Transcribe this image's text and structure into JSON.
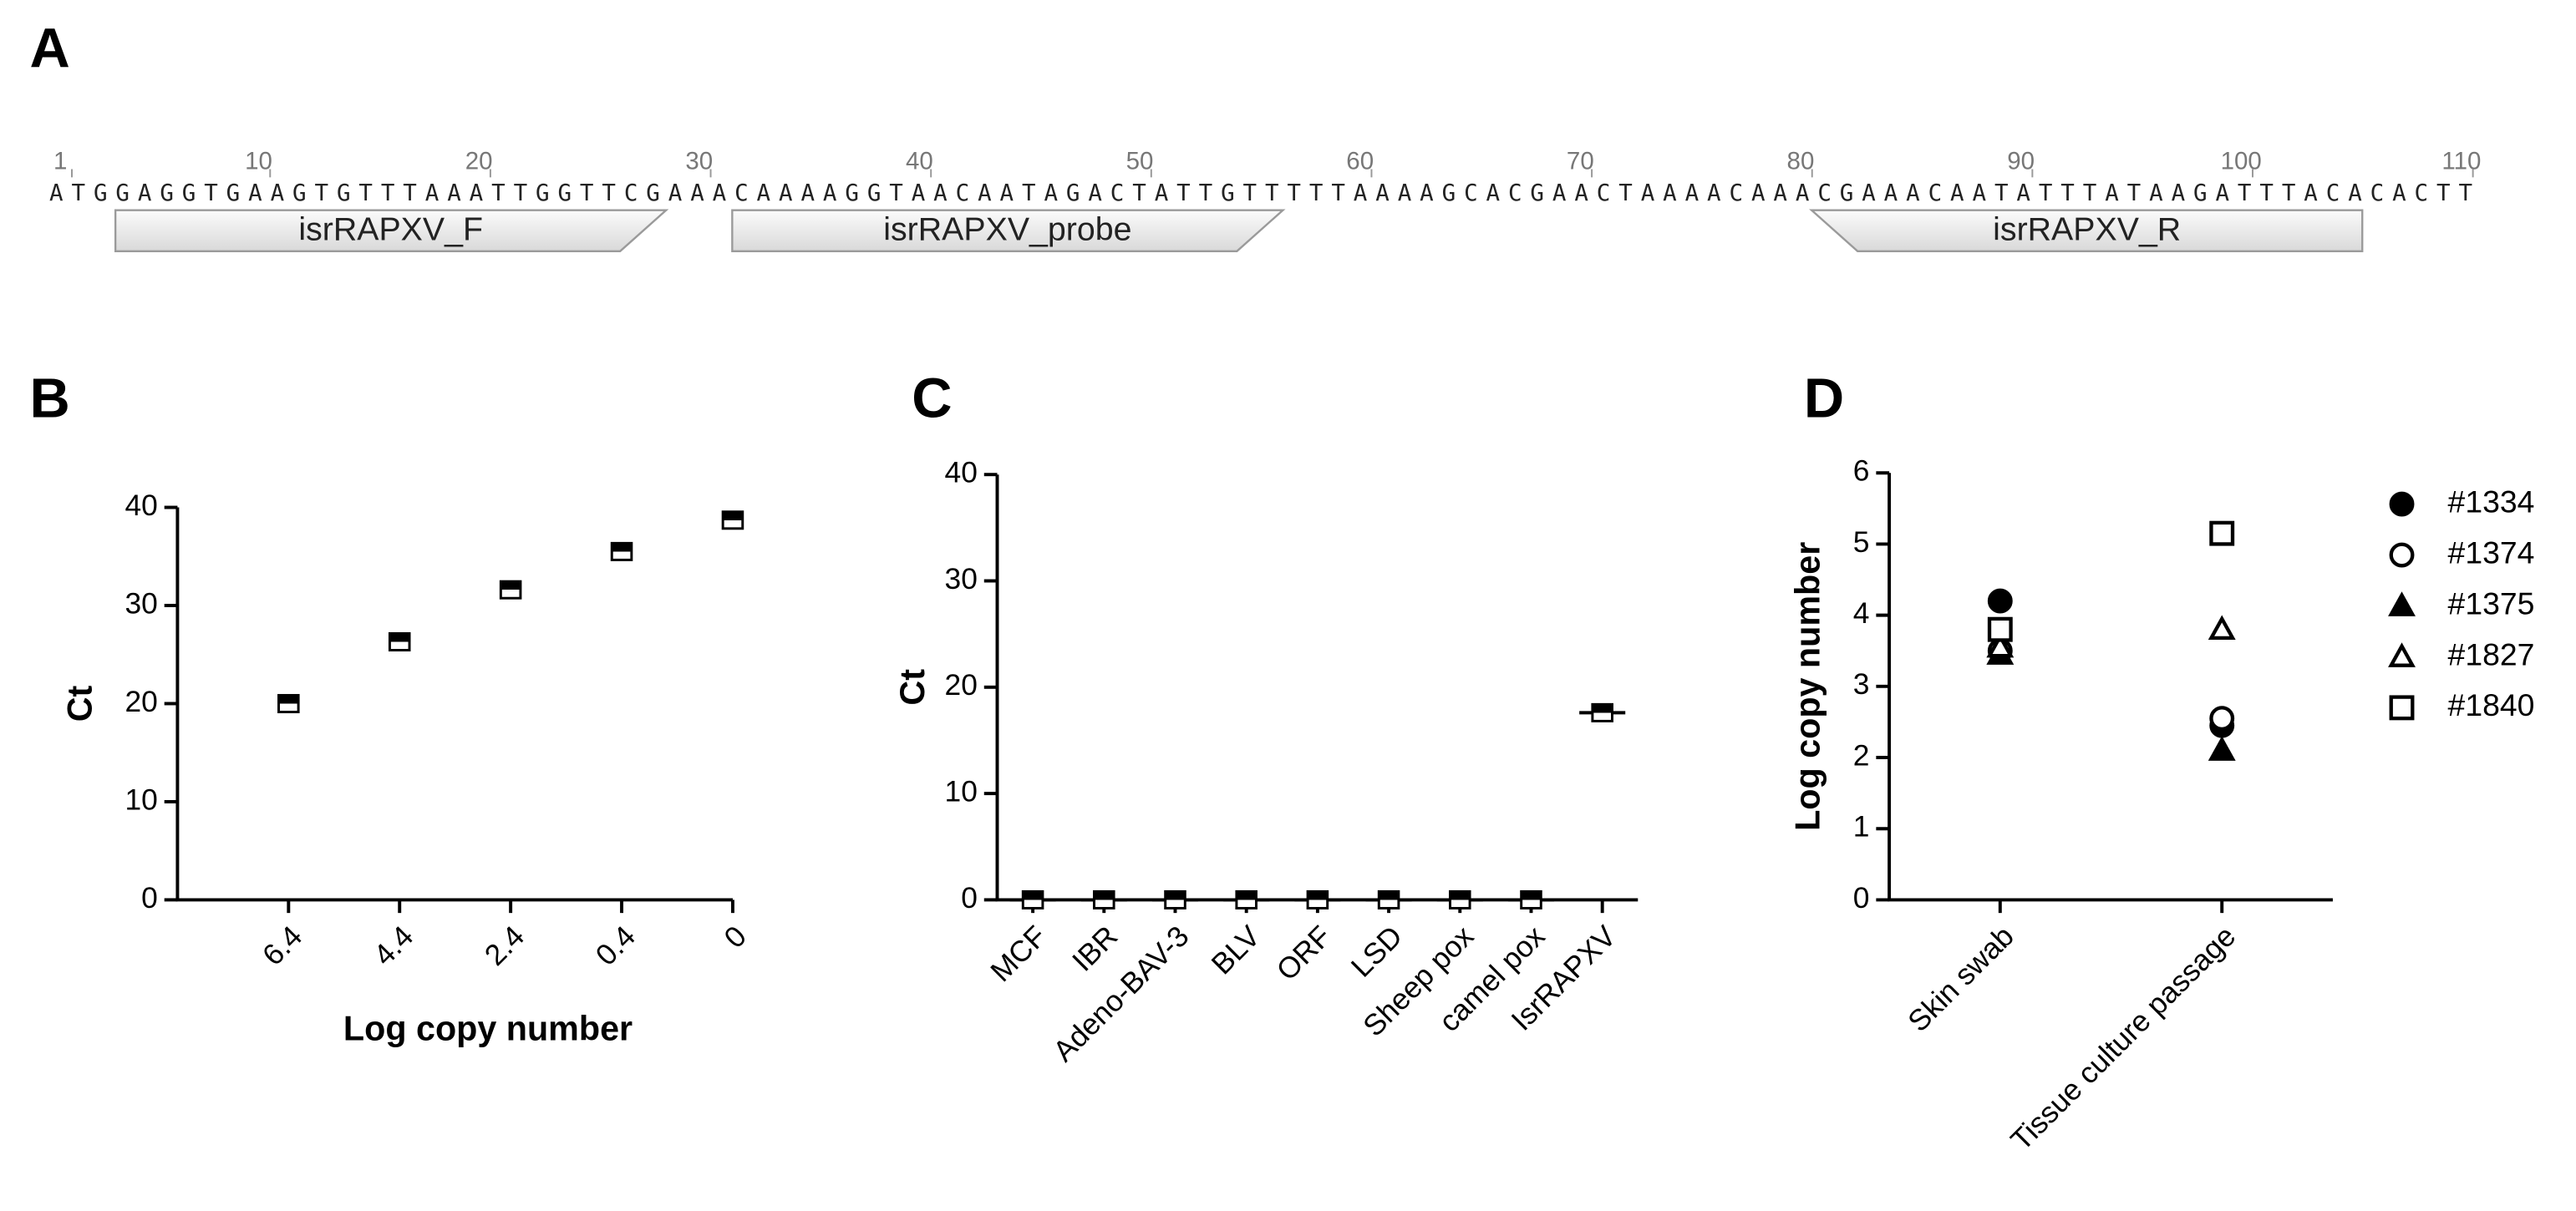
{
  "sequence_panel": {
    "label": "A",
    "sequence": "ATGGAGGTGAAGTGTTTAAATTGGTTCGAAACAAAAGGTAACAATAGACTATTGTTTTTAAAAGCACGAACTAAAACAAACGAAACAATATTTATAAGATTTACACACTT",
    "ruler": [
      1,
      10,
      20,
      30,
      40,
      50,
      60,
      70,
      80,
      90,
      100,
      110
    ],
    "features": [
      {
        "name": "isrRAPXV_F",
        "start": 4,
        "end": 28,
        "direction": "forward"
      },
      {
        "name": "isrRAPXV_probe",
        "start": 32,
        "end": 56,
        "direction": "forward"
      },
      {
        "name": "isrRAPXV_R",
        "start": 81,
        "end": 105,
        "direction": "reverse"
      }
    ]
  },
  "chart_data": [
    {
      "label": "B",
      "type": "scatter",
      "categories": [
        "6.4",
        "4.4",
        "2.4",
        "0.4",
        "0"
      ],
      "values": [
        20,
        26.3,
        31.6,
        35.5,
        38.7
      ],
      "marker": "half-square",
      "color": "#000000",
      "ylabel": "Ct",
      "xlabel": "Log copy number",
      "ylim": [
        0,
        40
      ],
      "yticks": [
        0,
        10,
        20,
        30,
        40
      ]
    },
    {
      "label": "C",
      "type": "scatter",
      "categories": [
        "MCF",
        "IBR",
        "Adeno-BAV-3",
        "BLV",
        "ORF",
        "LSD",
        "Sheep pox",
        "camel pox",
        "IsrRAPXV"
      ],
      "values": [
        0,
        0,
        0,
        0,
        0,
        0,
        0,
        0,
        17.6
      ],
      "marker": "half-square",
      "color": "#000000",
      "mean_line": true,
      "ylabel": "Ct",
      "ylim": [
        0,
        40
      ],
      "yticks": [
        0,
        10,
        20,
        30,
        40
      ]
    },
    {
      "label": "D",
      "type": "scatter",
      "categories": [
        "Skin swab",
        "Tissue culture passage"
      ],
      "ylabel": "Log copy number",
      "ylim": [
        0,
        6
      ],
      "yticks": [
        0,
        1,
        2,
        3,
        4,
        5,
        6
      ],
      "legend": "right",
      "series": [
        {
          "name": "#1334",
          "color": "#000000",
          "marker": "circle",
          "filled": true,
          "values": [
            4.2,
            2.45
          ]
        },
        {
          "name": "#1374",
          "color": "#000000",
          "marker": "circle",
          "filled": false,
          "values": [
            3.5,
            2.55
          ]
        },
        {
          "name": "#1375",
          "color": "#000000",
          "marker": "triangle",
          "filled": true,
          "values": [
            3.45,
            2.1
          ]
        },
        {
          "name": "#1827",
          "color": "#000000",
          "marker": "triangle",
          "filled": false,
          "values": [
            3.55,
            3.8
          ]
        },
        {
          "name": "#1840",
          "color": "#000000",
          "marker": "square",
          "filled": false,
          "values": [
            3.8,
            5.15
          ]
        }
      ]
    }
  ]
}
